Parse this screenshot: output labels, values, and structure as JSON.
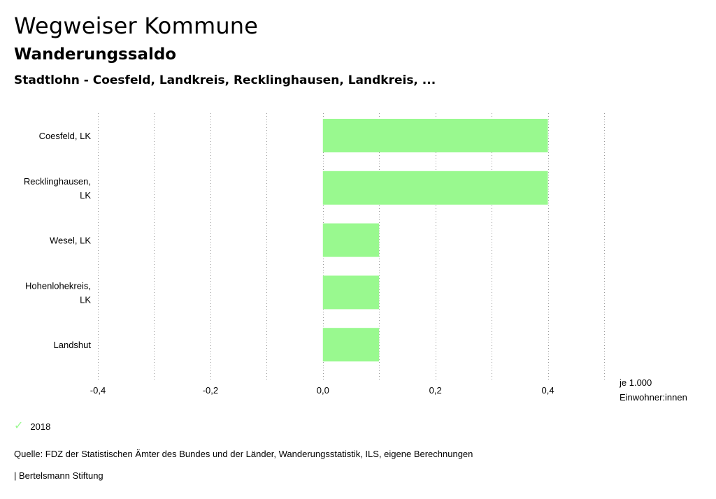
{
  "header": {
    "title": "Wegweiser Kommune",
    "subtitle": "Wanderungssaldo",
    "selection": "Stadtlohn - Coesfeld, Landkreis, Recklinghausen, Landkreis, ..."
  },
  "colors": {
    "bar": "#99f98f",
    "grid": "#999999"
  },
  "chart_data": {
    "type": "bar",
    "orientation": "horizontal",
    "categories": [
      [
        "Coesfeld, LK"
      ],
      [
        "Recklinghausen,",
        "LK"
      ],
      [
        "Wesel, LK"
      ],
      [
        "Hohenlohekreis,",
        "LK"
      ],
      [
        "Landshut"
      ]
    ],
    "series": [
      {
        "name": "2018",
        "values": [
          0.4,
          0.4,
          0.1,
          0.1,
          0.1
        ]
      }
    ],
    "xlim": [
      -0.4,
      0.5
    ],
    "xticks": [
      -0.4,
      -0.2,
      0.0,
      0.2,
      0.4
    ],
    "xtick_labels": [
      "-0,4",
      "-0,2",
      "0,0",
      "0,2",
      "0,4"
    ],
    "gridlines": [
      -0.4,
      -0.3,
      -0.2,
      -0.1,
      0.0,
      0.1,
      0.2,
      0.3,
      0.4,
      0.5
    ],
    "unit_label": [
      "je 1.000",
      "Einwohner:innen"
    ]
  },
  "legend": {
    "label": "2018"
  },
  "footer": {
    "source": "Quelle: FDZ der Statistischen Ämter des Bundes und der Länder, Wanderungsstatistik, ILS, eigene Berechnungen",
    "publisher": "| Bertelsmann Stiftung"
  }
}
